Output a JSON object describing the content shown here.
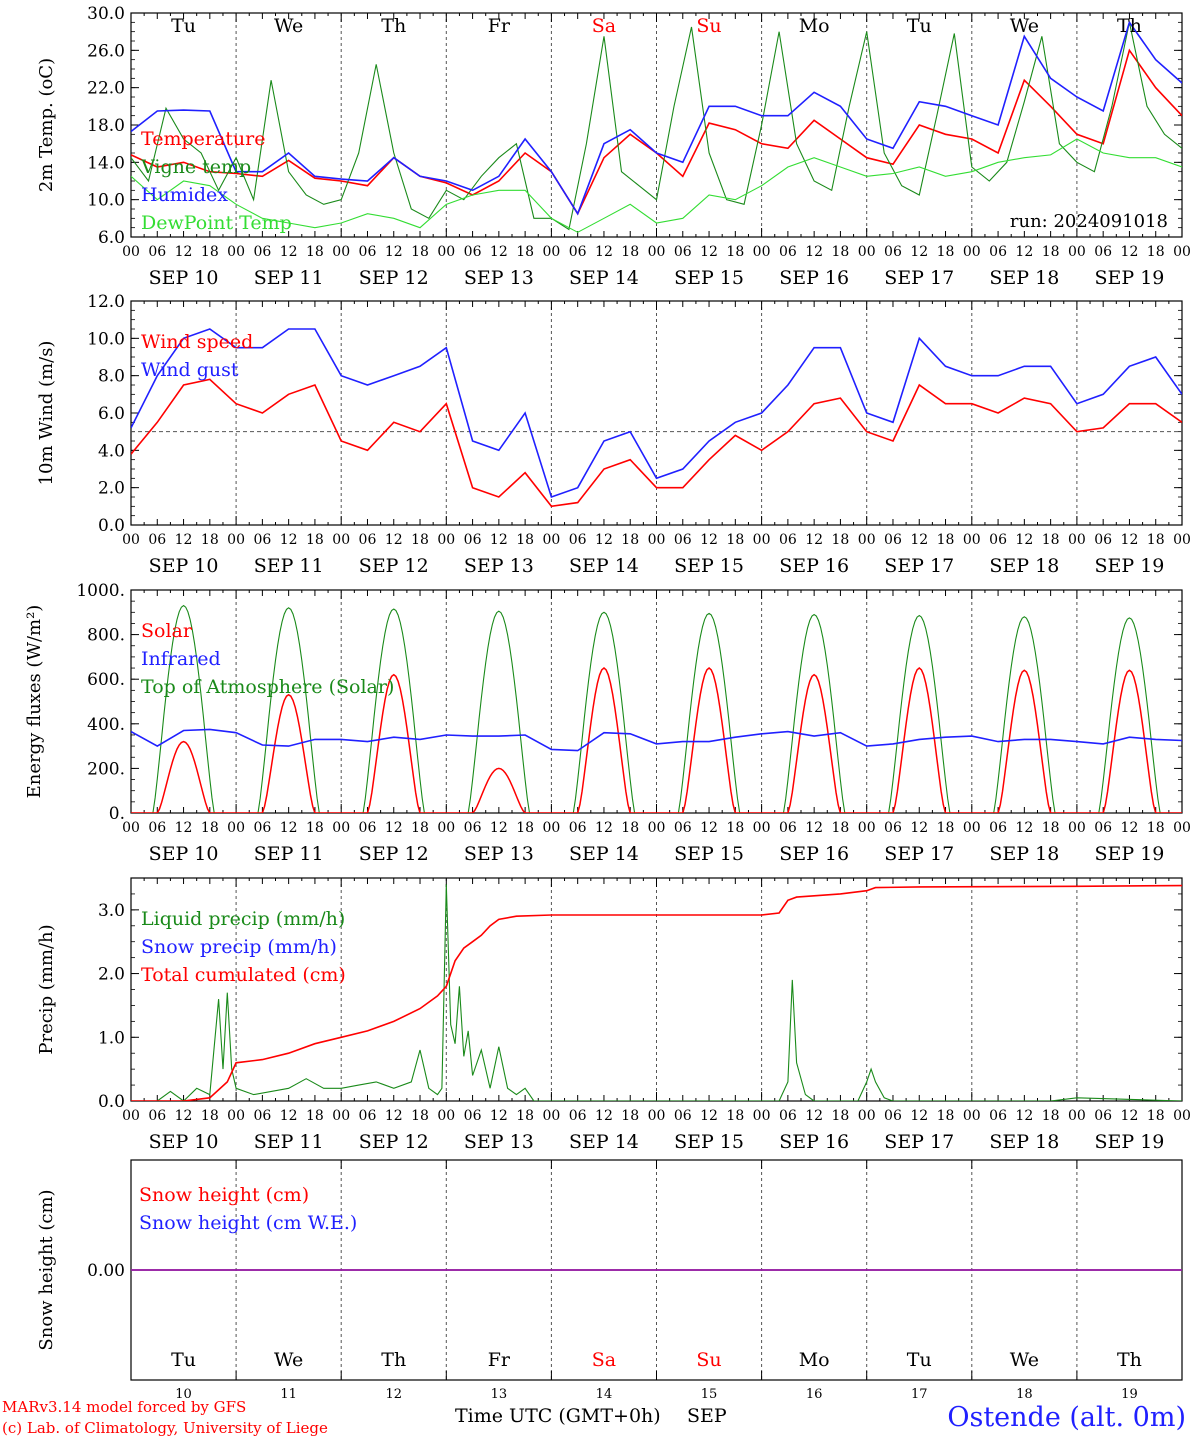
{
  "colors": {
    "red": "#ff0000",
    "blue": "#2020ff",
    "green": "#1a8a1a",
    "lightgreen": "#33dd33",
    "grid": "#555555",
    "purple": "#a020a0"
  },
  "chart_data": [
    {
      "id": "temperature",
      "type": "line",
      "ylabel": "2m Temp. (oC)",
      "yticks": [
        "6.0",
        "10.0",
        "14.0",
        "18.0",
        "22.0",
        "26.0",
        "30.0"
      ],
      "ylim": [
        6,
        30
      ],
      "annotation": "run: 2024091018",
      "day_names": [
        "Tu",
        "We",
        "Th",
        "Fr",
        "Sa",
        "Su",
        "Mo",
        "Tu",
        "We",
        "Th"
      ],
      "x_unit": "hours since SEP 10 00 UTC",
      "series": [
        {
          "name": "Temperature",
          "color": "red",
          "x": [
            0,
            6,
            12,
            18,
            24,
            30,
            36,
            42,
            48,
            54,
            60,
            66,
            72,
            78,
            84,
            90,
            96,
            102,
            108,
            114,
            120,
            126,
            132,
            138,
            144,
            150,
            156,
            162,
            168,
            174,
            180,
            186,
            192,
            198,
            204,
            210,
            216,
            222,
            228,
            234,
            240
          ],
          "y": [
            14.8,
            13.5,
            14.0,
            13.0,
            12.8,
            12.5,
            14.2,
            12.3,
            12.0,
            11.5,
            14.5,
            12.5,
            11.8,
            10.5,
            12.0,
            15.0,
            13.0,
            8.5,
            14.5,
            17.0,
            15.0,
            12.5,
            18.2,
            17.5,
            16.0,
            15.5,
            18.5,
            16.5,
            14.5,
            13.8,
            18.0,
            17.0,
            16.5,
            15.0,
            22.8,
            20.0,
            17.0,
            16.0,
            26.0,
            22.0,
            19.0
          ]
        },
        {
          "name": "Vigne temp",
          "color": "green",
          "x": [
            0,
            4,
            8,
            12,
            16,
            20,
            24,
            28,
            32,
            36,
            40,
            44,
            48,
            52,
            56,
            60,
            64,
            68,
            72,
            76,
            80,
            84,
            88,
            92,
            96,
            100,
            104,
            108,
            112,
            116,
            120,
            124,
            128,
            132,
            136,
            140,
            144,
            148,
            152,
            156,
            160,
            164,
            168,
            172,
            176,
            180,
            184,
            188,
            192,
            196,
            200,
            204,
            208,
            212,
            216,
            220,
            224,
            228,
            232,
            236,
            240
          ],
          "y": [
            14.5,
            12.0,
            19.8,
            16.5,
            15.0,
            11.0,
            14.5,
            10.0,
            22.8,
            13.0,
            10.5,
            9.5,
            10.0,
            15.0,
            24.5,
            15.0,
            9.0,
            8.0,
            11.0,
            10.0,
            12.5,
            14.5,
            16.0,
            8.0,
            8.0,
            6.8,
            16.0,
            27.5,
            13.0,
            11.5,
            10.0,
            20.0,
            28.5,
            15.0,
            10.0,
            9.5,
            18.0,
            28.0,
            16.0,
            12.0,
            11.0,
            20.0,
            28.0,
            15.0,
            11.5,
            10.5,
            19.0,
            27.8,
            13.5,
            12.0,
            14.0,
            20.5,
            27.5,
            16.0,
            14.0,
            13.0,
            20.0,
            29.0,
            20.0,
            17.0,
            15.5
          ]
        },
        {
          "name": "Humidex",
          "color": "blue",
          "x": [
            0,
            6,
            12,
            18,
            24,
            30,
            36,
            42,
            48,
            54,
            60,
            66,
            72,
            78,
            84,
            90,
            96,
            102,
            108,
            114,
            120,
            126,
            132,
            138,
            144,
            150,
            156,
            162,
            168,
            174,
            180,
            186,
            192,
            198,
            204,
            210,
            216,
            222,
            228,
            234,
            240
          ],
          "y": [
            17.3,
            19.5,
            19.6,
            19.5,
            13.0,
            13.0,
            15.0,
            12.5,
            12.2,
            12.0,
            14.5,
            12.5,
            12.0,
            11.0,
            12.5,
            16.5,
            13.0,
            8.5,
            16.0,
            17.5,
            15.0,
            14.0,
            20.0,
            20.0,
            19.0,
            19.0,
            21.5,
            20.0,
            16.5,
            15.5,
            20.5,
            20.0,
            19.0,
            18.0,
            27.5,
            23.0,
            21.0,
            19.5,
            29.0,
            25.0,
            22.5
          ]
        },
        {
          "name": "DewPoint Temp",
          "color": "lightgreen",
          "x": [
            0,
            6,
            12,
            18,
            24,
            30,
            36,
            42,
            48,
            54,
            60,
            66,
            72,
            78,
            84,
            90,
            96,
            102,
            108,
            114,
            120,
            126,
            132,
            138,
            144,
            150,
            156,
            162,
            168,
            174,
            180,
            186,
            192,
            198,
            204,
            210,
            216,
            222,
            228,
            234,
            240
          ],
          "y": [
            12.5,
            10.0,
            12.0,
            11.5,
            9.5,
            8.0,
            7.5,
            7.0,
            7.5,
            8.5,
            8.0,
            7.0,
            9.5,
            10.5,
            11.0,
            11.0,
            8.0,
            6.5,
            8.0,
            9.5,
            7.5,
            8.0,
            10.5,
            10.0,
            11.5,
            13.5,
            14.5,
            13.5,
            12.5,
            12.8,
            13.5,
            12.5,
            13.0,
            14.0,
            14.5,
            14.8,
            16.5,
            15.0,
            14.5,
            14.5,
            13.5
          ]
        }
      ]
    },
    {
      "id": "wind",
      "type": "line",
      "ylabel": "10m Wind (m/s)",
      "yticks": [
        "0.0",
        "2.0",
        "4.0",
        "6.0",
        "8.0",
        "10.0",
        "12.0"
      ],
      "ylim": [
        0,
        12
      ],
      "reference_line": 5,
      "series": [
        {
          "name": "Wind speed",
          "color": "red",
          "x": [
            0,
            6,
            12,
            18,
            24,
            30,
            36,
            42,
            48,
            54,
            60,
            66,
            72,
            78,
            84,
            90,
            96,
            102,
            108,
            114,
            120,
            126,
            132,
            138,
            144,
            150,
            156,
            162,
            168,
            174,
            180,
            186,
            192,
            198,
            204,
            210,
            216,
            222,
            228,
            234,
            240
          ],
          "y": [
            3.8,
            5.5,
            7.5,
            7.8,
            6.5,
            6.0,
            7.0,
            7.5,
            4.5,
            4.0,
            5.5,
            5.0,
            6.5,
            2.0,
            1.5,
            2.8,
            1.0,
            1.2,
            3.0,
            3.5,
            2.0,
            2.0,
            3.5,
            4.8,
            4.0,
            5.0,
            6.5,
            6.8,
            5.0,
            4.5,
            7.5,
            6.5,
            6.5,
            6.0,
            6.8,
            6.5,
            5.0,
            5.2,
            6.5,
            6.5,
            5.5
          ]
        },
        {
          "name": "Wind gust",
          "color": "blue",
          "x": [
            0,
            6,
            12,
            18,
            24,
            30,
            36,
            42,
            48,
            54,
            60,
            66,
            72,
            78,
            84,
            90,
            96,
            102,
            108,
            114,
            120,
            126,
            132,
            138,
            144,
            150,
            156,
            162,
            168,
            174,
            180,
            186,
            192,
            198,
            204,
            210,
            216,
            222,
            228,
            234,
            240
          ],
          "y": [
            5.2,
            8.0,
            10.0,
            10.5,
            9.5,
            9.5,
            10.5,
            10.5,
            8.0,
            7.5,
            8.0,
            8.5,
            9.5,
            4.5,
            4.0,
            6.0,
            1.5,
            2.0,
            4.5,
            5.0,
            2.5,
            3.0,
            4.5,
            5.5,
            6.0,
            7.5,
            9.5,
            9.5,
            6.0,
            5.5,
            10.0,
            8.5,
            8.0,
            8.0,
            8.5,
            8.5,
            6.5,
            7.0,
            8.5,
            9.0,
            7.0
          ]
        }
      ]
    },
    {
      "id": "energy",
      "type": "line",
      "ylabel": "Energy fluxes (W/m²)",
      "yticks": [
        "0.",
        "200.",
        "400.",
        "600.",
        "800.",
        "1000."
      ],
      "ylim": [
        0,
        1000
      ],
      "toa_peak": [
        930,
        920,
        915,
        905,
        900,
        895,
        890,
        885,
        880,
        875
      ],
      "solar_peak": [
        320,
        530,
        620,
        200,
        650,
        650,
        620,
        650,
        640,
        640
      ],
      "series": [
        {
          "name": "Solar",
          "color": "red"
        },
        {
          "name": "Infrared",
          "color": "blue",
          "x": [
            0,
            6,
            12,
            18,
            24,
            30,
            36,
            42,
            48,
            54,
            60,
            66,
            72,
            78,
            84,
            90,
            96,
            102,
            108,
            114,
            120,
            126,
            132,
            138,
            144,
            150,
            156,
            162,
            168,
            174,
            180,
            186,
            192,
            198,
            204,
            210,
            216,
            222,
            228,
            234,
            240
          ],
          "y": [
            365,
            300,
            370,
            375,
            360,
            305,
            300,
            330,
            330,
            320,
            340,
            330,
            350,
            345,
            345,
            350,
            285,
            280,
            360,
            355,
            310,
            320,
            320,
            340,
            355,
            365,
            345,
            360,
            300,
            310,
            330,
            340,
            345,
            320,
            330,
            330,
            320,
            310,
            340,
            330,
            325
          ]
        },
        {
          "name": "Top of Atmosphere (Solar)",
          "color": "green"
        }
      ]
    },
    {
      "id": "precip",
      "type": "line",
      "ylabel": "Precip (mm/h)",
      "yticks": [
        "0.0",
        "1.0",
        "2.0",
        "3.0"
      ],
      "ylim": [
        0,
        3.5
      ],
      "series": [
        {
          "name": "Liquid precip (mm/h)",
          "color": "green",
          "x": [
            0,
            6,
            9,
            12,
            15,
            18,
            20,
            21,
            22,
            23,
            24,
            28,
            36,
            40,
            44,
            48,
            52,
            56,
            60,
            64,
            66,
            68,
            70,
            71,
            72,
            73,
            74,
            75,
            76,
            77,
            78,
            80,
            82,
            84,
            86,
            88,
            90,
            92,
            96,
            120,
            144,
            148,
            150,
            151,
            152,
            154,
            156,
            160,
            166,
            168,
            169,
            170,
            172,
            174,
            180,
            192,
            210,
            216,
            240
          ],
          "y": [
            0,
            0,
            0.15,
            0,
            0.2,
            0.1,
            1.6,
            0.5,
            1.7,
            0.5,
            0.2,
            0.1,
            0.2,
            0.35,
            0.2,
            0.2,
            0.25,
            0.3,
            0.2,
            0.3,
            0.8,
            0.2,
            0.1,
            0.2,
            3.4,
            1.2,
            0.9,
            1.8,
            0.7,
            1.1,
            0.4,
            0.8,
            0.2,
            0.85,
            0.2,
            0.1,
            0.2,
            0,
            0,
            0,
            0,
            0,
            0.3,
            1.9,
            0.6,
            0.1,
            0,
            0,
            0,
            0.3,
            0.5,
            0.3,
            0.05,
            0,
            0,
            0,
            0,
            0.05,
            0
          ]
        },
        {
          "name": "Snow precip (mm/h)",
          "color": "blue"
        },
        {
          "name": "Total cumulated (cm)",
          "color": "red",
          "x": [
            0,
            12,
            18,
            22,
            24,
            30,
            36,
            42,
            48,
            54,
            60,
            66,
            70,
            72,
            74,
            76,
            78,
            80,
            82,
            84,
            88,
            96,
            120,
            144,
            148,
            150,
            152,
            156,
            162,
            168,
            170,
            180,
            216,
            240
          ],
          "y": [
            0,
            0,
            0.05,
            0.3,
            0.6,
            0.65,
            0.75,
            0.9,
            1.0,
            1.1,
            1.25,
            1.45,
            1.65,
            1.8,
            2.2,
            2.4,
            2.5,
            2.6,
            2.75,
            2.85,
            2.9,
            2.92,
            2.92,
            2.92,
            2.95,
            3.15,
            3.2,
            3.22,
            3.25,
            3.3,
            3.35,
            3.36,
            3.37,
            3.38
          ]
        }
      ]
    },
    {
      "id": "snow",
      "type": "line",
      "ylabel": "Snow height (cm)",
      "yticks": [
        "0.00"
      ],
      "ylim": [
        -1,
        1
      ],
      "series": [
        {
          "name": "Snow height (cm)",
          "color": "red",
          "x": [
            0,
            240
          ],
          "y": [
            0,
            0
          ]
        },
        {
          "name": "Snow height (cm W.E.)",
          "color": "blue",
          "x": [
            0,
            240
          ],
          "y": [
            0,
            0
          ]
        }
      ],
      "day_names": [
        "Tu",
        "We",
        "Th",
        "Fr",
        "Sa",
        "Su",
        "Mo",
        "Tu",
        "We",
        "Th"
      ],
      "day_numbers": [
        "10",
        "11",
        "12",
        "13",
        "14",
        "15",
        "16",
        "17",
        "18",
        "19"
      ]
    }
  ],
  "x_hour_labels": [
    "00",
    "06",
    "12",
    "18"
  ],
  "x_final_label": "00",
  "x_date_labels": [
    "SEP 10",
    "SEP 11",
    "SEP 12",
    "SEP 13",
    "SEP 14",
    "SEP 15",
    "SEP 16",
    "SEP 17",
    "SEP 18",
    "SEP 19"
  ],
  "weekend_days": [
    4,
    5
  ],
  "footer": {
    "credit1": "MARv3.14 model forced by GFS",
    "credit2": "(c) Lab. of Climatology, University of Liege",
    "xtitle": "Time UTC (GMT+0h)",
    "month": "SEP",
    "station": "Ostende (alt. 0m)"
  }
}
